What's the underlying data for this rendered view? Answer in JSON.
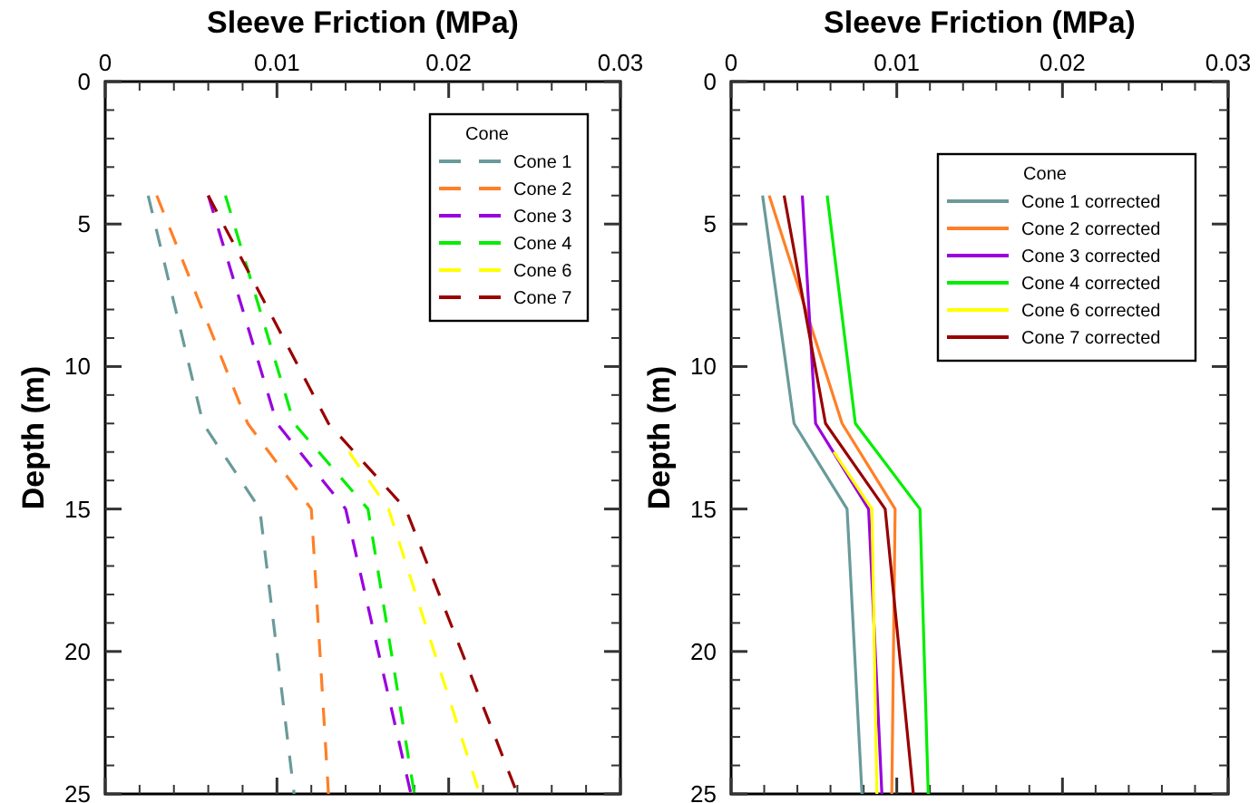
{
  "chart_data": [
    {
      "type": "line",
      "xlabel": "Sleeve Friction (MPa)",
      "ylabel": "Depth (m)",
      "legend_title": "Cone",
      "legend": "top right",
      "line_style": "dashed",
      "grid": false,
      "xlim": [
        0,
        0.03
      ],
      "xticks": [
        0,
        {
          "value": 0.002,
          "label": null
        },
        {
          "value": 0.004,
          "label": null
        },
        {
          "value": 0.006,
          "label": null
        },
        {
          "value": 0.008,
          "label": null
        },
        0.01,
        {
          "value": 0.012,
          "label": null
        },
        {
          "value": 0.014,
          "label": null
        },
        {
          "value": 0.016,
          "label": null
        },
        {
          "value": 0.018,
          "label": null
        },
        0.02,
        {
          "value": 0.022,
          "label": null
        },
        {
          "value": 0.024,
          "label": null
        },
        {
          "value": 0.026,
          "label": null
        },
        {
          "value": 0.028,
          "label": null
        },
        0.03
      ],
      "ylim": [
        25,
        0
      ],
      "yticks": [
        0,
        {
          "value": 1,
          "label": null
        },
        {
          "value": 2,
          "label": null
        },
        {
          "value": 3,
          "label": null
        },
        {
          "value": 4,
          "label": null
        },
        5,
        {
          "value": 6,
          "label": null
        },
        {
          "value": 7,
          "label": null
        },
        {
          "value": 8,
          "label": null
        },
        {
          "value": 9,
          "label": null
        },
        10,
        {
          "value": 11,
          "label": null
        },
        {
          "value": 12,
          "label": null
        },
        {
          "value": 13,
          "label": null
        },
        {
          "value": 14,
          "label": null
        },
        15,
        {
          "value": 16,
          "label": null
        },
        {
          "value": 17,
          "label": null
        },
        {
          "value": 18,
          "label": null
        },
        {
          "value": 19,
          "label": null
        },
        20,
        {
          "value": 21,
          "label": null
        },
        {
          "value": 22,
          "label": null
        },
        {
          "value": 23,
          "label": null
        },
        {
          "value": 24,
          "label": null
        },
        25
      ],
      "series": [
        {
          "name": "Cone 1",
          "color": "#6a9a9a",
          "x": [
            0.0025,
            0.0057,
            0.009,
            0.011
          ],
          "values": [
            4,
            12,
            15,
            25
          ]
        },
        {
          "name": "Cone 2",
          "color": "#ff7f27",
          "x": [
            0.003,
            0.0083,
            0.012,
            0.013
          ],
          "values": [
            4,
            12,
            15,
            25
          ]
        },
        {
          "name": "Cone 3",
          "color": "#9900dd",
          "x": [
            0.006,
            0.01,
            0.014,
            0.0178
          ],
          "values": [
            4,
            12,
            15,
            25
          ]
        },
        {
          "name": "Cone 4",
          "color": "#00ee00",
          "x": [
            0.007,
            0.011,
            0.0153,
            0.018
          ],
          "values": [
            4,
            12,
            15,
            25
          ]
        },
        {
          "name": "Cone 6",
          "color": "#ffff00",
          "x": [
            0.0142,
            0.0165,
            0.0218
          ],
          "values": [
            13,
            15,
            25
          ]
        },
        {
          "name": "Cone 7",
          "color": "#990000",
          "x": [
            0.006,
            0.013,
            0.0175,
            0.024
          ],
          "values": [
            4,
            12,
            15,
            25
          ]
        }
      ]
    },
    {
      "type": "line",
      "xlabel": "Sleeve Friction (MPa)",
      "ylabel": "Depth (m)",
      "legend_title": "Cone",
      "legend": "top right",
      "line_style": "solid",
      "grid": false,
      "xlim": [
        0,
        0.03
      ],
      "xticks": [
        0,
        {
          "value": 0.002,
          "label": null
        },
        {
          "value": 0.004,
          "label": null
        },
        {
          "value": 0.006,
          "label": null
        },
        {
          "value": 0.008,
          "label": null
        },
        0.01,
        {
          "value": 0.012,
          "label": null
        },
        {
          "value": 0.014,
          "label": null
        },
        {
          "value": 0.016,
          "label": null
        },
        {
          "value": 0.018,
          "label": null
        },
        0.02,
        {
          "value": 0.022,
          "label": null
        },
        {
          "value": 0.024,
          "label": null
        },
        {
          "value": 0.026,
          "label": null
        },
        {
          "value": 0.028,
          "label": null
        },
        0.03
      ],
      "ylim": [
        25,
        0
      ],
      "yticks": [
        0,
        {
          "value": 1,
          "label": null
        },
        {
          "value": 2,
          "label": null
        },
        {
          "value": 3,
          "label": null
        },
        {
          "value": 4,
          "label": null
        },
        5,
        {
          "value": 6,
          "label": null
        },
        {
          "value": 7,
          "label": null
        },
        {
          "value": 8,
          "label": null
        },
        {
          "value": 9,
          "label": null
        },
        10,
        {
          "value": 11,
          "label": null
        },
        {
          "value": 12,
          "label": null
        },
        {
          "value": 13,
          "label": null
        },
        {
          "value": 14,
          "label": null
        },
        15,
        {
          "value": 16,
          "label": null
        },
        {
          "value": 17,
          "label": null
        },
        {
          "value": 18,
          "label": null
        },
        {
          "value": 19,
          "label": null
        },
        20,
        {
          "value": 21,
          "label": null
        },
        {
          "value": 22,
          "label": null
        },
        {
          "value": 23,
          "label": null
        },
        {
          "value": 24,
          "label": null
        },
        25
      ],
      "series": [
        {
          "name": "Cone 1 corrected",
          "color": "#6a9a9a",
          "x": [
            0.0019,
            0.0038,
            0.007,
            0.0079
          ],
          "values": [
            4,
            12,
            15,
            25
          ]
        },
        {
          "name": "Cone 2 corrected",
          "color": "#ff7f27",
          "x": [
            0.0023,
            0.0067,
            0.0099,
            0.0097
          ],
          "values": [
            4,
            12,
            15,
            25
          ]
        },
        {
          "name": "Cone 3 corrected",
          "color": "#9900dd",
          "x": [
            0.0043,
            0.0051,
            0.0083,
            0.0091
          ],
          "values": [
            4,
            12,
            15,
            25
          ]
        },
        {
          "name": "Cone 4 corrected",
          "color": "#00ee00",
          "x": [
            0.0058,
            0.0075,
            0.0114,
            0.0119
          ],
          "values": [
            4,
            12,
            15,
            25
          ]
        },
        {
          "name": "Cone 6 corrected",
          "color": "#ffff00",
          "x": [
            0.0062,
            0.0085,
            0.0088
          ],
          "values": [
            13,
            15,
            25
          ]
        },
        {
          "name": "Cone 7 corrected",
          "color": "#990000",
          "x": [
            0.0032,
            0.0057,
            0.0093,
            0.011
          ],
          "values": [
            4,
            12,
            15,
            25
          ]
        }
      ]
    }
  ]
}
